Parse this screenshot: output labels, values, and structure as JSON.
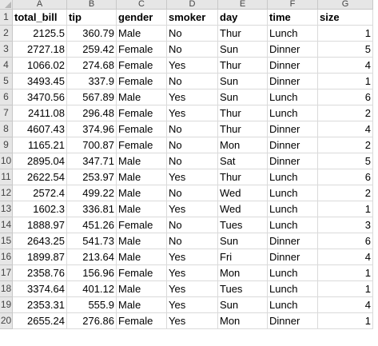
{
  "columns": [
    "A",
    "B",
    "C",
    "D",
    "E",
    "F",
    "G"
  ],
  "headers": [
    "total_bill",
    "tip",
    "gender",
    "smoker",
    "day",
    "time",
    "size"
  ],
  "rows": [
    [
      "2125.5",
      "360.79",
      "Male",
      "No",
      "Thur",
      "Lunch",
      "1"
    ],
    [
      "2727.18",
      "259.42",
      "Female",
      "No",
      "Sun",
      "Dinner",
      "5"
    ],
    [
      "1066.02",
      "274.68",
      "Female",
      "Yes",
      "Thur",
      "Dinner",
      "4"
    ],
    [
      "3493.45",
      "337.9",
      "Female",
      "No",
      "Sun",
      "Dinner",
      "1"
    ],
    [
      "3470.56",
      "567.89",
      "Male",
      "Yes",
      "Sun",
      "Lunch",
      "6"
    ],
    [
      "2411.08",
      "296.48",
      "Female",
      "Yes",
      "Thur",
      "Lunch",
      "2"
    ],
    [
      "4607.43",
      "374.96",
      "Female",
      "No",
      "Thur",
      "Dinner",
      "4"
    ],
    [
      "1165.21",
      "700.87",
      "Female",
      "No",
      "Mon",
      "Dinner",
      "2"
    ],
    [
      "2895.04",
      "347.71",
      "Male",
      "No",
      "Sat",
      "Dinner",
      "5"
    ],
    [
      "2622.54",
      "253.97",
      "Male",
      "Yes",
      "Thur",
      "Lunch",
      "6"
    ],
    [
      "2572.4",
      "499.22",
      "Male",
      "No",
      "Wed",
      "Lunch",
      "2"
    ],
    [
      "1602.3",
      "336.81",
      "Male",
      "Yes",
      "Wed",
      "Lunch",
      "1"
    ],
    [
      "1888.97",
      "451.26",
      "Female",
      "No",
      "Tues",
      "Lunch",
      "3"
    ],
    [
      "2643.25",
      "541.73",
      "Male",
      "No",
      "Sun",
      "Dinner",
      "6"
    ],
    [
      "1899.87",
      "213.64",
      "Male",
      "Yes",
      "Fri",
      "Dinner",
      "4"
    ],
    [
      "2358.76",
      "156.96",
      "Female",
      "Yes",
      "Mon",
      "Lunch",
      "1"
    ],
    [
      "3374.64",
      "401.12",
      "Male",
      "Yes",
      "Tues",
      "Lunch",
      "1"
    ],
    [
      "2353.31",
      "555.9",
      "Male",
      "Yes",
      "Sun",
      "Lunch",
      "4"
    ],
    [
      "2655.24",
      "276.86",
      "Female",
      "Yes",
      "Mon",
      "Dinner",
      "1"
    ]
  ],
  "numeric_columns": [
    0,
    1,
    6
  ],
  "icons": {
    "select_all": "select-all-triangle-icon"
  }
}
